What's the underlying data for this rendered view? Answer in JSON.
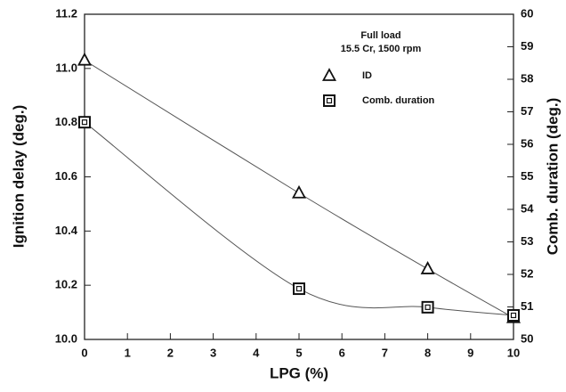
{
  "chart_data": {
    "type": "line",
    "x_label": "LPG (%)",
    "y_label": "Ignition delay (deg.)",
    "y2_label": "Comb. duration (deg.)",
    "annotations": [
      "Full load",
      "15.5 Cr, 1500 rpm"
    ],
    "x": [
      0,
      5,
      8,
      10
    ],
    "series": [
      {
        "name": "ID",
        "color": "#111111",
        "marker": "triangle",
        "values": [
          11.03,
          10.54,
          10.26,
          10.08
        ]
      },
      {
        "name": "Comb. duration",
        "color": "#111111",
        "marker": "square",
        "axis": "y2",
        "values": [
          56.68,
          51.56,
          50.99,
          50.74
        ]
      }
    ],
    "xlim": [
      0,
      10
    ],
    "xticks": [
      0,
      1,
      2,
      3,
      4,
      5,
      6,
      7,
      8,
      9,
      10
    ],
    "ylim": [
      10.0,
      11.2
    ],
    "yticks": [
      {
        "value": 10.0,
        "label": "10.0"
      },
      10.2,
      10.4,
      10.6,
      10.8,
      {
        "value": 11.0,
        "label": "11.0"
      },
      11.2
    ],
    "y2lim": [
      50,
      60
    ],
    "y2ticks": [
      50,
      51,
      52,
      53,
      54,
      55,
      56,
      57,
      58,
      59,
      60
    ]
  }
}
